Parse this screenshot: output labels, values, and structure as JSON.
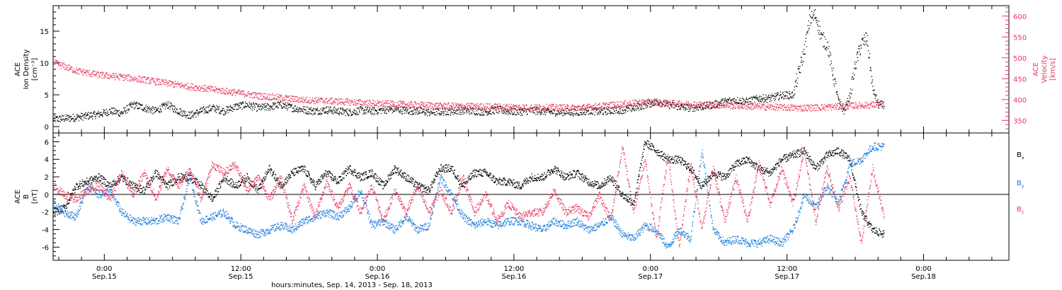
{
  "colors": {
    "black": "#000000",
    "pink": "#e8355d",
    "blue": "#1677d8"
  },
  "xaxis": {
    "title": "hours:minutes, Sep. 14, 2013 - Sep. 18, 2013",
    "ticks": [
      {
        "t": 4.5,
        "time": "0:00",
        "date": "Sep.15"
      },
      {
        "t": 16.5,
        "time": "12:00",
        "date": "Sep.15"
      },
      {
        "t": 28.5,
        "time": "0:00",
        "date": "Sep.16"
      },
      {
        "t": 40.5,
        "time": "12:00",
        "date": "Sep.16"
      },
      {
        "t": 52.5,
        "time": "0:00",
        "date": "Sep.17"
      },
      {
        "t": 64.5,
        "time": "12:00",
        "date": "Sep.17"
      },
      {
        "t": 76.5,
        "time": "0:00",
        "date": "Sep.18"
      }
    ],
    "range": [
      0,
      84
    ]
  },
  "chart_data": [
    {
      "type": "scatter",
      "panel": "top",
      "ylabel_left": [
        "ACE",
        "Ion Density",
        "[cm⁻³]"
      ],
      "ylabel_right": [
        "ACE",
        "Velocity",
        "[km/s]"
      ],
      "left_axis": {
        "range": [
          -1,
          19
        ],
        "ticks": [
          0,
          5,
          10,
          15
        ]
      },
      "right_axis": {
        "range": [
          320,
          625
        ],
        "ticks": [
          350,
          400,
          450,
          500,
          550,
          600
        ]
      },
      "series": [
        {
          "axis": "left",
          "color": "black",
          "x": [
            0,
            2,
            4,
            5,
            6,
            7,
            8,
            9,
            10,
            11,
            12,
            13,
            14,
            15,
            16,
            17,
            18,
            19,
            20,
            21,
            22,
            23,
            24,
            25,
            26,
            27,
            28,
            29,
            30,
            31,
            32,
            33,
            34,
            35,
            36,
            37,
            38,
            39,
            40,
            41,
            42,
            43,
            44,
            45,
            46,
            47,
            48,
            49,
            50,
            51,
            52,
            53,
            54,
            55,
            56,
            57,
            58,
            59,
            60,
            61,
            62,
            63,
            64,
            65,
            66,
            66.5,
            67,
            67.5,
            68,
            68.5,
            69,
            69.5,
            70,
            70.5,
            71,
            71.5,
            72,
            72.5,
            73
          ],
          "y": [
            1.2,
            1.5,
            2.0,
            2.5,
            2.2,
            3.5,
            3.0,
            2.5,
            3.5,
            2.5,
            1.8,
            2.5,
            3.0,
            2.5,
            3.2,
            3.5,
            3.0,
            3.2,
            3.5,
            3.0,
            2.7,
            2.5,
            2.7,
            2.5,
            2.3,
            2.6,
            2.5,
            2.7,
            2.8,
            2.6,
            2.5,
            2.3,
            2.4,
            2.5,
            2.6,
            2.5,
            2.4,
            2.7,
            2.5,
            2.4,
            2.6,
            2.5,
            2.3,
            2.4,
            2.3,
            2.6,
            2.4,
            2.6,
            2.7,
            3.0,
            3.5,
            4.0,
            3.5,
            3.2,
            3.0,
            3.2,
            3.5,
            4.0,
            4.2,
            4.0,
            4.5,
            4.5,
            5.0,
            5.0,
            12.0,
            17.0,
            17.5,
            14.0,
            13.0,
            8.5,
            4.0,
            2.5,
            5.0,
            10.0,
            13.0,
            14.0,
            6.0,
            3.5,
            3.5
          ]
        },
        {
          "axis": "right",
          "color": "pink",
          "x": [
            0,
            1,
            2,
            3,
            4,
            6,
            8,
            10,
            12,
            14,
            16,
            18,
            20,
            22,
            24,
            26,
            28,
            30,
            32,
            34,
            36,
            38,
            40,
            42,
            44,
            46,
            48,
            50,
            52,
            54,
            56,
            58,
            60,
            62,
            64,
            66,
            68,
            70,
            72,
            73
          ],
          "y": [
            490,
            480,
            470,
            465,
            460,
            455,
            448,
            440,
            432,
            425,
            418,
            410,
            405,
            400,
            398,
            395,
            392,
            390,
            388,
            386,
            385,
            384,
            383,
            382,
            382,
            381,
            385,
            390,
            395,
            392,
            390,
            388,
            386,
            384,
            382,
            381,
            383,
            386,
            388,
            390
          ]
        }
      ]
    },
    {
      "type": "scatter",
      "panel": "bottom",
      "ylabel_left": [
        "ACE",
        "B",
        "[nT]"
      ],
      "left_axis": {
        "range": [
          -7.5,
          7
        ],
        "ticks": [
          -6,
          -4,
          -2,
          0,
          2,
          4,
          6
        ]
      },
      "legend": [
        {
          "label": "B",
          "sub": "x",
          "color": "black"
        },
        {
          "label": "B",
          "sub": "y",
          "color": "blue"
        },
        {
          "label": "B",
          "sub": "z",
          "color": "pink"
        }
      ],
      "series": [
        {
          "name": "Bx",
          "color": "black",
          "x": [
            0,
            1,
            2,
            3,
            4,
            5,
            6,
            7,
            8,
            9,
            10,
            11,
            12,
            13,
            14,
            15,
            16,
            17,
            18,
            19,
            20,
            21,
            22,
            23,
            24,
            25,
            26,
            27,
            28,
            29,
            30,
            31,
            32,
            33,
            34,
            35,
            36,
            37,
            38,
            39,
            40,
            41,
            42,
            43,
            44,
            45,
            46,
            47,
            48,
            49,
            50,
            51,
            52,
            53,
            54,
            55,
            56,
            57,
            58,
            59,
            60,
            61,
            62,
            63,
            64,
            65,
            66,
            67,
            68,
            69,
            70,
            71,
            72,
            73
          ],
          "y": [
            -2.0,
            -1.5,
            1.0,
            1.5,
            2.0,
            1.0,
            2.0,
            1.0,
            0.5,
            2.5,
            1.0,
            2.0,
            2.0,
            1.0,
            -0.5,
            2.0,
            1.0,
            2.0,
            0.5,
            3.0,
            1.0,
            2.5,
            3.0,
            1.0,
            2.5,
            1.5,
            3.0,
            2.0,
            2.5,
            1.0,
            3.0,
            2.0,
            1.0,
            0.5,
            3.0,
            3.0,
            1.0,
            2.5,
            2.5,
            1.5,
            1.5,
            1.0,
            2.0,
            2.0,
            3.0,
            2.0,
            2.5,
            1.5,
            1.0,
            2.0,
            0.0,
            -1.0,
            6.0,
            5.0,
            4.0,
            4.0,
            3.0,
            1.0,
            2.5,
            2.0,
            3.5,
            4.0,
            3.0,
            2.5,
            4.0,
            4.5,
            5.0,
            3.0,
            4.5,
            5.0,
            4.0,
            -2.0,
            -4.0,
            -4.5
          ]
        },
        {
          "name": "By",
          "color": "blue",
          "x": [
            0,
            1,
            2,
            3,
            4,
            5,
            6,
            7,
            8,
            9,
            10,
            11,
            12,
            13,
            14,
            15,
            16,
            17,
            18,
            19,
            20,
            21,
            22,
            23,
            24,
            25,
            26,
            27,
            28,
            29,
            30,
            31,
            32,
            33,
            34,
            35,
            36,
            37,
            38,
            39,
            40,
            41,
            42,
            43,
            44,
            45,
            46,
            47,
            48,
            49,
            50,
            51,
            52,
            53,
            54,
            55,
            56,
            57,
            58,
            59,
            60,
            61,
            62,
            63,
            64,
            65,
            66,
            67,
            68,
            69,
            70,
            71,
            72,
            73
          ],
          "y": [
            -1.0,
            -2.0,
            -2.5,
            1.0,
            0.0,
            0.5,
            -2.0,
            -3.0,
            -3.0,
            -3.0,
            -2.5,
            -3.0,
            2.0,
            -3.0,
            -2.5,
            -2.0,
            -3.5,
            -4.0,
            -4.5,
            -4.0,
            -3.5,
            -4.0,
            -3.0,
            -2.5,
            -2.0,
            -2.5,
            -1.5,
            0.5,
            -3.5,
            -3.0,
            -4.0,
            -2.5,
            -4.0,
            -3.5,
            2.0,
            0.0,
            -2.5,
            -3.5,
            -3.0,
            -3.5,
            -3.0,
            -3.0,
            -3.5,
            -4.0,
            -3.0,
            -3.5,
            -3.0,
            -4.0,
            -3.5,
            -2.5,
            -4.5,
            -5.0,
            -3.5,
            -4.0,
            -6.0,
            -4.0,
            -5.0,
            5.0,
            -4.0,
            -5.5,
            -5.0,
            -5.5,
            -5.5,
            -5.0,
            -5.5,
            -4.0,
            0.0,
            -1.5,
            1.0,
            -1.0,
            3.5,
            4.0,
            5.5,
            5.5
          ]
        },
        {
          "name": "Bz",
          "color": "pink",
          "x": [
            0,
            1,
            2,
            3,
            4,
            5,
            6,
            7,
            8,
            9,
            10,
            11,
            12,
            13,
            14,
            15,
            16,
            17,
            18,
            19,
            20,
            21,
            22,
            23,
            24,
            25,
            26,
            27,
            28,
            29,
            30,
            31,
            32,
            33,
            34,
            35,
            36,
            37,
            38,
            39,
            40,
            41,
            42,
            43,
            44,
            45,
            46,
            47,
            48,
            49,
            50,
            51,
            52,
            53,
            54,
            55,
            56,
            57,
            58,
            59,
            60,
            61,
            62,
            63,
            64,
            65,
            66,
            67,
            68,
            69,
            70,
            71,
            72,
            73
          ],
          "y": [
            1.0,
            0.0,
            -0.5,
            0.5,
            1.0,
            -0.5,
            2.5,
            0.0,
            2.5,
            -0.5,
            3.0,
            1.0,
            3.0,
            -0.5,
            3.5,
            2.5,
            3.5,
            0.5,
            2.0,
            -0.5,
            2.0,
            -3.0,
            1.0,
            -2.5,
            1.5,
            -1.5,
            1.0,
            -2.0,
            1.0,
            -3.0,
            0.5,
            -2.0,
            1.0,
            -2.0,
            0.5,
            -2.0,
            2.0,
            -2.0,
            0.0,
            -3.0,
            -1.0,
            -2.5,
            -2.0,
            -2.0,
            0.5,
            -2.0,
            -1.5,
            -2.5,
            0.0,
            -3.0,
            5.5,
            -2.0,
            4.0,
            -5.0,
            4.5,
            -6.0,
            3.5,
            -4.0,
            3.0,
            -3.0,
            2.0,
            -3.0,
            3.5,
            -1.0,
            3.0,
            -1.0,
            5.0,
            -3.0,
            3.0,
            -1.5,
            2.0,
            -5.5,
            3.0,
            -2.5
          ]
        }
      ]
    }
  ]
}
